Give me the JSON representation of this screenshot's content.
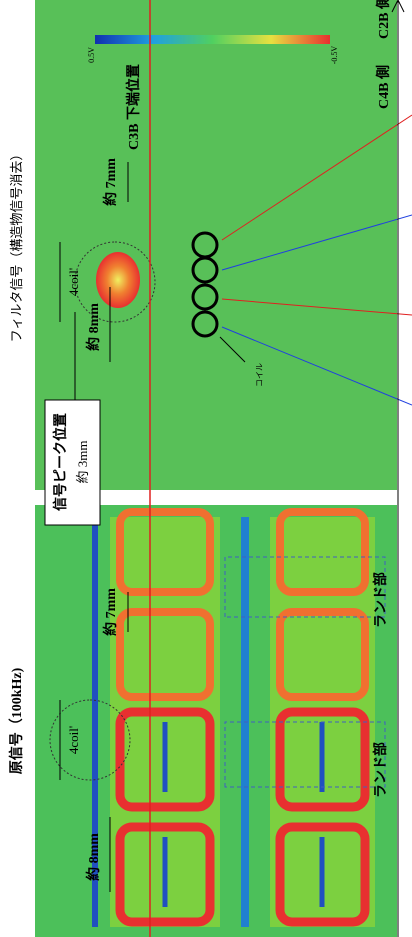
{
  "original_panel": {
    "title": "原信号（100kHz)",
    "coil_span": "4coil'",
    "width_7mm": "約 7mm",
    "width_8mm": "約 8mm",
    "land_1": "ランド部",
    "land_2": "ランド部"
  },
  "filtered_panel": {
    "title": "フィルタ信号（構造物信号消去）",
    "coil_span": "4coil'",
    "width_7mm": "約 7mm",
    "width_8mm": "約 8mm",
    "edge_line": "C3B 下端位置",
    "coil": "コイル"
  },
  "peak_box": {
    "line1": "信号ピーク位置",
    "line2": "約 3mm"
  },
  "colorbar": {
    "min_label": "0.5V",
    "max_label": "-0.5V"
  },
  "sides": {
    "top": "C2B 側",
    "bottom": "C4B 側"
  }
}
